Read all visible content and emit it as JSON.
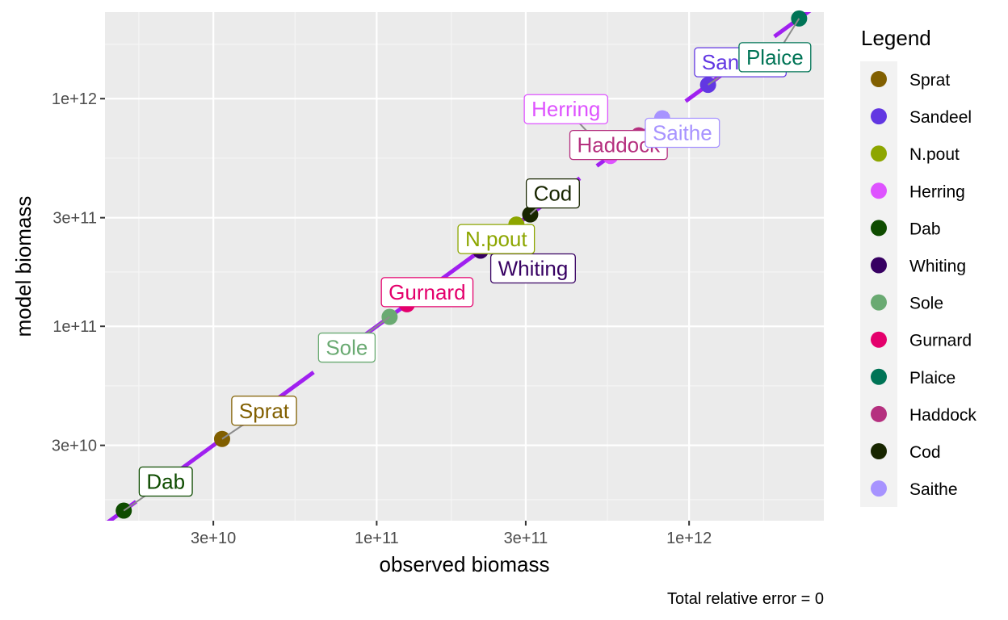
{
  "chart_data": {
    "type": "scatter",
    "xlabel": "observed biomass",
    "ylabel": "model biomass",
    "x_scale": "log10",
    "y_scale": "log10",
    "xlim": [
      13500000000,
      2700000000000
    ],
    "ylim": [
      14000000000,
      2400000000000
    ],
    "x_ticks": [
      {
        "value": 30000000000,
        "label": "3e+10"
      },
      {
        "value": 100000000000,
        "label": "1e+11"
      },
      {
        "value": 300000000000,
        "label": "3e+11"
      },
      {
        "value": 1000000000000,
        "label": "1e+12"
      }
    ],
    "y_ticks": [
      {
        "value": 30000000000,
        "label": "3e+10"
      },
      {
        "value": 100000000000,
        "label": "1e+11"
      },
      {
        "value": 300000000000,
        "label": "3e+11"
      },
      {
        "value": 1000000000000,
        "label": "1e+12"
      }
    ],
    "grid": true,
    "reference_line": {
      "type": "identity",
      "color": "#a020f0",
      "dashed": true
    },
    "legend": {
      "title": "Legend",
      "position": "right"
    },
    "caption": "Total relative error = 0",
    "points": [
      {
        "species": "Sprat",
        "x": 32000000000,
        "y": 32000000000,
        "color": "#815f00"
      },
      {
        "species": "Sandeel",
        "x": 1150000000000,
        "y": 1150000000000,
        "color": "#6237e2"
      },
      {
        "species": "N.pout",
        "x": 280000000000,
        "y": 280000000000,
        "color": "#8da600"
      },
      {
        "species": "Herring",
        "x": 560000000000,
        "y": 560000000000,
        "color": "#de53ff"
      },
      {
        "species": "Dab",
        "x": 15500000000,
        "y": 15500000000,
        "color": "#0e4c00"
      },
      {
        "species": "Whiting",
        "x": 215000000000,
        "y": 215000000000,
        "color": "#370062"
      },
      {
        "species": "Sole",
        "x": 110000000000,
        "y": 110000000000,
        "color": "#6aaa72"
      },
      {
        "species": "Gurnard",
        "x": 125000000000,
        "y": 125000000000,
        "color": "#e4006c"
      },
      {
        "species": "Plaice",
        "x": 2250000000000,
        "y": 2250000000000,
        "color": "#007456"
      },
      {
        "species": "Haddock",
        "x": 690000000000,
        "y": 690000000000,
        "color": "#b5307f"
      },
      {
        "species": "Cod",
        "x": 310000000000,
        "y": 310000000000,
        "color": "#182600"
      },
      {
        "species": "Saithe",
        "x": 820000000000,
        "y": 820000000000,
        "color": "#a793ff"
      }
    ]
  }
}
